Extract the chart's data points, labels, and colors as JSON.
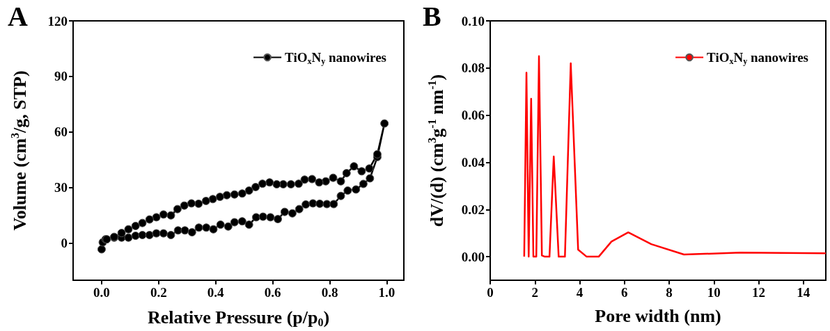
{
  "chart_data": [
    {
      "type": "line",
      "title": "A",
      "xlabel": "Relative Pressure (p/p$_{0}$)",
      "ylabel": "Volume (cm$^{3}$/g, STP)",
      "x": [
        0,
        0.004,
        0.014,
        0.044,
        0.07,
        0.094,
        0.119,
        0.143,
        0.168,
        0.192,
        0.217,
        0.243,
        0.268,
        0.292,
        0.317,
        0.341,
        0.367,
        0.392,
        0.417,
        0.444,
        0.466,
        0.493,
        0.517,
        0.542,
        0.566,
        0.592,
        0.618,
        0.642,
        0.669,
        0.693,
        0.716,
        0.741,
        0.765,
        0.79,
        0.814,
        0.839,
        0.863,
        0.892,
        0.918,
        0.941,
        0.967,
        0.992,
        0.967,
        0.939,
        0.912,
        0.885,
        0.859,
        0.839,
        0.812,
        0.786,
        0.763,
        0.738,
        0.712,
        0.691,
        0.664,
        0.637,
        0.614,
        0.589,
        0.564,
        0.54,
        0.517,
        0.493,
        0.466,
        0.439,
        0.415,
        0.39,
        0.366,
        0.34,
        0.315,
        0.29,
        0.266,
        0.243,
        0.217,
        0.192,
        0.168,
        0.143,
        0.119,
        0.094,
        0.07,
        0.044,
        0.018
      ],
      "series": [
        {
          "name": "TiO$_{x}$N$_{y}$ nanowires",
          "color": "#000000",
          "values": [
            -3.3,
            0.5,
            2.1,
            3,
            3,
            3,
            4,
            4.4,
            4.4,
            5.3,
            5.3,
            4.4,
            6.9,
            6.9,
            5.9,
            8.4,
            8.4,
            7.5,
            10,
            9,
            11.3,
            11.8,
            10,
            14,
            14.3,
            14,
            13,
            16.9,
            16.1,
            18.4,
            20.9,
            21.5,
            21.3,
            21.1,
            21.1,
            25.5,
            28.4,
            29,
            32,
            35,
            46.5,
            64.6,
            48,
            40.3,
            38.8,
            41.5,
            37.8,
            33.4,
            35.3,
            33.4,
            32.8,
            34.6,
            34.3,
            32.1,
            31.8,
            31.8,
            31.8,
            32.8,
            32.1,
            30.3,
            28.4,
            26.8,
            26.3,
            25.9,
            25,
            23.8,
            22.8,
            21.3,
            21.5,
            20.3,
            18.4,
            15,
            15.5,
            14,
            12.8,
            10.9,
            9.3,
            7.5,
            5.5,
            3.4,
            2.1
          ]
        }
      ],
      "xlim": [
        -0.1,
        1.06
      ],
      "ylim": [
        -20,
        120
      ],
      "xticks": [
        {
          "value": 0,
          "label": "0.0"
        },
        {
          "value": 0.2,
          "label": "0.2"
        },
        {
          "value": 0.4,
          "label": "0.4"
        },
        {
          "value": 0.6,
          "label": "0.6"
        },
        {
          "value": 0.8,
          "label": "0.8"
        },
        {
          "value": 1,
          "label": "1.0"
        }
      ],
      "yticks": [
        0,
        30,
        60,
        90,
        120
      ],
      "legend": "top right",
      "marker": "circle"
    },
    {
      "type": "line",
      "title": "B",
      "xlabel": "Pore width (nm)",
      "ylabel": "dV/(d) (cm$^{3}$g$^{-1}$ nm$^{-1}$)",
      "x": [
        1.52,
        1.62,
        1.72,
        1.83,
        1.93,
        2.06,
        2.18,
        2.31,
        2.44,
        2.65,
        2.84,
        3.06,
        3.34,
        3.6,
        3.93,
        4.31,
        4.85,
        5.42,
        6.17,
        7.2,
        8.66,
        11.17,
        15
      ],
      "series": [
        {
          "name": "TiO$_{x}$N$_{y}$ nanowires",
          "color": "#ff0000",
          "values": [
            0,
            0.078,
            0,
            0.067,
            0,
            0,
            0.085,
            0.0005,
            0,
            0,
            0.0425,
            0,
            0,
            0.082,
            0.003,
            0,
            0,
            0.0064,
            0.0103,
            0.0053,
            0.0009,
            0.0017,
            0.0014
          ]
        }
      ],
      "xlim": [
        0,
        15
      ],
      "ylim": [
        -0.01,
        0.1
      ],
      "xticks": [
        0,
        2,
        4,
        6,
        8,
        10,
        12,
        14
      ],
      "yticks": [
        {
          "value": 0,
          "label": "0.00"
        },
        {
          "value": 0.02,
          "label": "0.02"
        },
        {
          "value": 0.04,
          "label": "0.04"
        },
        {
          "value": 0.06,
          "label": "0.06"
        },
        {
          "value": 0.08,
          "label": "0.08"
        },
        {
          "value": 0.1,
          "label": "0.10"
        }
      ],
      "legend": "top right",
      "marker": "none"
    }
  ]
}
